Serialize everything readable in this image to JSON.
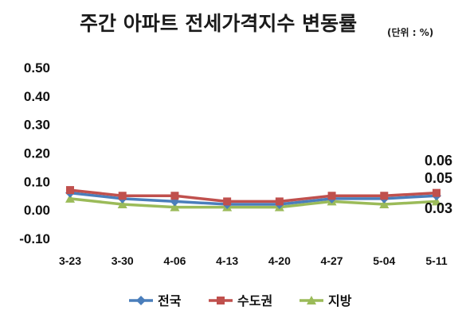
{
  "chart_data": {
    "type": "line",
    "title": "주간 아파트 전세가격지수 변동률",
    "unit_note": "(단위 : %)",
    "categories": [
      "3-23",
      "3-30",
      "4-06",
      "4-13",
      "4-20",
      "4-27",
      "5-04",
      "5-11"
    ],
    "y_ticks": [
      "0.50",
      "0.40",
      "0.30",
      "0.20",
      "0.10",
      "0.00",
      "-0.10"
    ],
    "ylim": [
      -0.1,
      0.5
    ],
    "grid": false,
    "legend_position": "bottom",
    "series": [
      {
        "name": "전국",
        "color": "#4a7ebb",
        "marker": "diamond",
        "values": [
          0.06,
          0.04,
          0.03,
          0.02,
          0.02,
          0.04,
          0.04,
          0.05
        ]
      },
      {
        "name": "수도권",
        "color": "#c0504d",
        "marker": "square",
        "values": [
          0.07,
          0.05,
          0.05,
          0.03,
          0.03,
          0.05,
          0.05,
          0.06
        ]
      },
      {
        "name": "지방",
        "color": "#9bbb59",
        "marker": "triangle",
        "values": [
          0.04,
          0.02,
          0.01,
          0.01,
          0.01,
          0.03,
          0.02,
          0.03
        ]
      }
    ],
    "data_labels": [
      "0.06",
      "0.05",
      "0.03"
    ]
  }
}
